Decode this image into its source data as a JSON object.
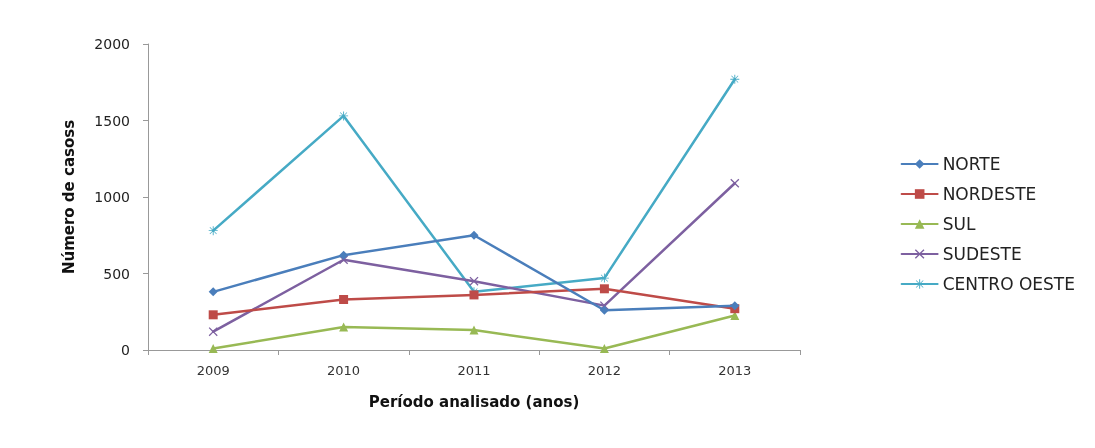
{
  "chart_data": {
    "type": "line",
    "xlabel": "Período analisado (anos)",
    "ylabel": "Número de casoss",
    "categories": [
      "2009",
      "2010",
      "2011",
      "2012",
      "2013"
    ],
    "ylim": [
      0,
      2000
    ],
    "yticks": [
      0,
      500,
      1000,
      1500,
      2000
    ],
    "grid": false,
    "legend": "right",
    "line_style": "solid",
    "series": [
      {
        "name": "NORTE",
        "color": "#4a7ebb",
        "marker": "diamond",
        "values": [
          380,
          620,
          750,
          260,
          290
        ]
      },
      {
        "name": "NORDESTE",
        "color": "#be4b48",
        "marker": "square",
        "values": [
          230,
          330,
          360,
          400,
          270
        ]
      },
      {
        "name": "SUL",
        "color": "#98b954",
        "marker": "triangle",
        "values": [
          10,
          150,
          130,
          10,
          225
        ]
      },
      {
        "name": "SUDESTE",
        "color": "#7d60a0",
        "marker": "cross",
        "values": [
          120,
          590,
          450,
          290,
          1090
        ]
      },
      {
        "name": "CENTRO OESTE",
        "color": "#46aac5",
        "marker": "star",
        "values": [
          780,
          1530,
          380,
          470,
          1770
        ]
      }
    ]
  }
}
